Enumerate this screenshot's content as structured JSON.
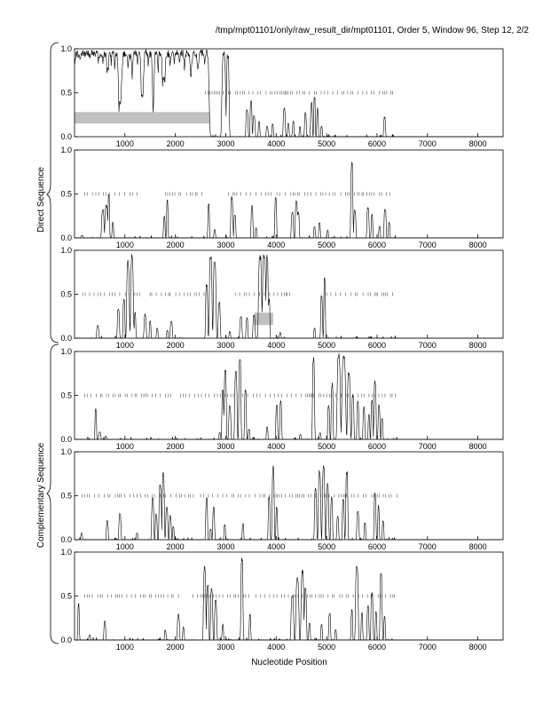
{
  "header_text": "/tmp/mpt01101/only/raw_result_dir/mpt01101, Order 5, Window 96, Step 12, 2/2",
  "xlabel": "Nucleotide Position",
  "group_labels": {
    "direct": "Direct Sequence",
    "complementary": "Complementary Sequence"
  },
  "colors": {
    "line": "#000000",
    "highlight": "#c0c0c0",
    "frame": "#000000"
  },
  "chart_data": {
    "type": "line",
    "xlim": [
      0,
      8500
    ],
    "ylim": [
      0,
      1
    ],
    "x_ticks": [
      1000,
      2000,
      3000,
      4000,
      5000,
      6000,
      7000,
      8000
    ],
    "y_ticks": [
      "0.0",
      "0.5",
      "1.0"
    ],
    "grid": false,
    "legend": "none",
    "frames": [
      {
        "group": "direct",
        "peaks": [
          [
            60,
            980,
            160
          ],
          [
            170,
            990,
            200
          ],
          [
            260,
            985,
            160
          ],
          [
            360,
            1000,
            160
          ],
          [
            430,
            990,
            120
          ],
          [
            520,
            970,
            140
          ],
          [
            600,
            980,
            100
          ],
          [
            660,
            800,
            50
          ],
          [
            700,
            980,
            70
          ],
          [
            760,
            990,
            90
          ],
          [
            830,
            970,
            80
          ],
          [
            900,
            420,
            40
          ],
          [
            1000,
            990,
            140
          ],
          [
            1100,
            960,
            90
          ],
          [
            1200,
            995,
            120
          ],
          [
            1280,
            990,
            80
          ],
          [
            1340,
            500,
            40
          ],
          [
            1420,
            1000,
            110
          ],
          [
            1500,
            980,
            90
          ],
          [
            1560,
            300,
            30
          ],
          [
            1620,
            990,
            90
          ],
          [
            1700,
            995,
            90
          ],
          [
            1770,
            700,
            60
          ],
          [
            1850,
            985,
            120
          ],
          [
            1940,
            990,
            110
          ],
          [
            2030,
            1000,
            130
          ],
          [
            2130,
            995,
            120
          ],
          [
            2240,
            985,
            140
          ],
          [
            2380,
            990,
            150
          ],
          [
            2520,
            995,
            170
          ],
          [
            2620,
            990,
            90
          ],
          [
            2960,
            980,
            70
          ],
          [
            3040,
            960,
            50
          ],
          [
            3420,
            320,
            40
          ],
          [
            3500,
            420,
            35
          ],
          [
            3560,
            250,
            40
          ],
          [
            3660,
            180,
            30
          ],
          [
            3820,
            120,
            35
          ],
          [
            3930,
            150,
            30
          ],
          [
            4160,
            330,
            40
          ],
          [
            4240,
            160,
            30
          ],
          [
            4340,
            180,
            30
          ],
          [
            4470,
            120,
            25
          ],
          [
            4580,
            280,
            35
          ],
          [
            4700,
            400,
            35
          ],
          [
            4760,
            470,
            30
          ],
          [
            4820,
            330,
            30
          ],
          [
            4900,
            120,
            30
          ],
          [
            6150,
            230,
            35
          ]
        ],
        "ticks": [
          [
            2600,
            3700
          ],
          [
            3800,
            4900
          ],
          [
            4960,
            6350
          ]
        ],
        "highlights": [
          [
            0,
            2680,
            0.15,
            0.28
          ]
        ]
      },
      {
        "group": "direct",
        "peaks": [
          [
            150,
            30,
            40
          ],
          [
            560,
            330,
            45
          ],
          [
            630,
            380,
            50
          ],
          [
            680,
            520,
            30
          ],
          [
            760,
            180,
            30
          ],
          [
            1780,
            260,
            30
          ],
          [
            1840,
            450,
            30
          ],
          [
            2660,
            400,
            30
          ],
          [
            2780,
            100,
            30
          ],
          [
            3120,
            480,
            40
          ],
          [
            3180,
            280,
            35
          ],
          [
            3520,
            380,
            35
          ],
          [
            3600,
            120,
            30
          ],
          [
            3990,
            470,
            35
          ],
          [
            4320,
            300,
            40
          ],
          [
            4400,
            440,
            40
          ],
          [
            4440,
            300,
            35
          ],
          [
            4760,
            130,
            30
          ],
          [
            4860,
            180,
            30
          ],
          [
            5020,
            90,
            30
          ],
          [
            5500,
            880,
            40
          ],
          [
            5560,
            330,
            40
          ],
          [
            5820,
            360,
            40
          ],
          [
            5900,
            280,
            30
          ],
          [
            6050,
            140,
            30
          ],
          [
            6160,
            340,
            40
          ],
          [
            6240,
            180,
            30
          ]
        ],
        "ticks": [
          [
            200,
            1300
          ],
          [
            1800,
            2600
          ],
          [
            3050,
            6300
          ]
        ],
        "highlights": []
      },
      {
        "group": "direct",
        "peaks": [
          [
            460,
            150,
            40
          ],
          [
            870,
            350,
            40
          ],
          [
            980,
            450,
            35
          ],
          [
            1060,
            900,
            50
          ],
          [
            1140,
            960,
            50
          ],
          [
            1200,
            300,
            30
          ],
          [
            1400,
            280,
            40
          ],
          [
            1500,
            200,
            30
          ],
          [
            1640,
            120,
            30
          ],
          [
            1840,
            90,
            30
          ],
          [
            1920,
            200,
            40
          ],
          [
            2620,
            640,
            40
          ],
          [
            2700,
            980,
            50
          ],
          [
            2780,
            900,
            50
          ],
          [
            2870,
            420,
            40
          ],
          [
            3080,
            80,
            30
          ],
          [
            3300,
            260,
            40
          ],
          [
            3420,
            240,
            35
          ],
          [
            3560,
            270,
            40
          ],
          [
            3680,
            960,
            60
          ],
          [
            3760,
            980,
            60
          ],
          [
            3820,
            950,
            40
          ],
          [
            3860,
            450,
            30
          ],
          [
            4080,
            70,
            30
          ],
          [
            4760,
            120,
            30
          ],
          [
            4900,
            500,
            35
          ],
          [
            4960,
            700,
            30
          ]
        ],
        "ticks": [
          [
            160,
            1300
          ],
          [
            1500,
            2300
          ],
          [
            2380,
            2600
          ],
          [
            3200,
            4300
          ],
          [
            5000,
            6380
          ]
        ],
        "highlights": [
          [
            3560,
            3940,
            0.15,
            0.29
          ]
        ]
      },
      {
        "group": "complementary",
        "peaks": [
          [
            420,
            350,
            30
          ],
          [
            500,
            90,
            40
          ],
          [
            620,
            40,
            30
          ],
          [
            2880,
            80,
            30
          ],
          [
            2940,
            600,
            35
          ],
          [
            2990,
            820,
            40
          ],
          [
            3080,
            400,
            40
          ],
          [
            3200,
            800,
            45
          ],
          [
            3280,
            970,
            40
          ],
          [
            3390,
            580,
            35
          ],
          [
            3460,
            120,
            30
          ],
          [
            3820,
            150,
            30
          ],
          [
            4010,
            400,
            35
          ],
          [
            4090,
            450,
            35
          ],
          [
            4480,
            60,
            30
          ],
          [
            4740,
            960,
            40
          ],
          [
            4870,
            80,
            30
          ],
          [
            5040,
            400,
            35
          ],
          [
            5110,
            650,
            35
          ],
          [
            5240,
            980,
            60
          ],
          [
            5340,
            970,
            70
          ],
          [
            5440,
            800,
            50
          ],
          [
            5520,
            520,
            40
          ],
          [
            5620,
            450,
            35
          ],
          [
            5740,
            380,
            35
          ],
          [
            5840,
            300,
            30
          ],
          [
            5900,
            450,
            35
          ],
          [
            5960,
            680,
            40
          ],
          [
            6040,
            400,
            35
          ],
          [
            6100,
            250,
            30
          ]
        ],
        "ticks": [
          [
            200,
            2000
          ],
          [
            2100,
            3100
          ],
          [
            3150,
            6400
          ]
        ],
        "highlights": []
      },
      {
        "group": "complementary",
        "peaks": [
          [
            140,
            80,
            30
          ],
          [
            650,
            220,
            35
          ],
          [
            900,
            300,
            40
          ],
          [
            1240,
            80,
            30
          ],
          [
            1550,
            480,
            40
          ],
          [
            1620,
            300,
            35
          ],
          [
            1700,
            640,
            45
          ],
          [
            1760,
            800,
            40
          ],
          [
            1830,
            380,
            40
          ],
          [
            1900,
            280,
            35
          ],
          [
            1960,
            150,
            30
          ],
          [
            2620,
            490,
            35
          ],
          [
            2700,
            120,
            30
          ],
          [
            2760,
            380,
            35
          ],
          [
            2980,
            180,
            30
          ],
          [
            3340,
            190,
            30
          ],
          [
            3860,
            500,
            35
          ],
          [
            3940,
            850,
            40
          ],
          [
            4010,
            380,
            30
          ],
          [
            4780,
            600,
            40
          ],
          [
            4860,
            800,
            45
          ],
          [
            4940,
            850,
            45
          ],
          [
            5020,
            650,
            40
          ],
          [
            5100,
            500,
            35
          ],
          [
            5220,
            280,
            35
          ],
          [
            5330,
            480,
            35
          ],
          [
            5400,
            800,
            40
          ],
          [
            5620,
            330,
            40
          ],
          [
            5760,
            200,
            30
          ],
          [
            5960,
            540,
            35
          ],
          [
            6030,
            400,
            30
          ],
          [
            6120,
            220,
            30
          ]
        ],
        "ticks": [
          [
            150,
            1000
          ],
          [
            1100,
            2400
          ],
          [
            2500,
            6400
          ]
        ],
        "highlights": []
      },
      {
        "group": "complementary",
        "peaks": [
          [
            80,
            420,
            30
          ],
          [
            300,
            60,
            30
          ],
          [
            600,
            220,
            35
          ],
          [
            1800,
            120,
            30
          ],
          [
            2060,
            300,
            40
          ],
          [
            2160,
            150,
            30
          ],
          [
            2580,
            850,
            45
          ],
          [
            2640,
            650,
            40
          ],
          [
            2720,
            600,
            40
          ],
          [
            2800,
            480,
            40
          ],
          [
            2940,
            180,
            30
          ],
          [
            3320,
            950,
            40
          ],
          [
            3480,
            300,
            30
          ],
          [
            4320,
            520,
            50
          ],
          [
            4420,
            720,
            55
          ],
          [
            4520,
            800,
            50
          ],
          [
            4580,
            600,
            40
          ],
          [
            4660,
            200,
            30
          ],
          [
            4900,
            180,
            30
          ],
          [
            5060,
            320,
            35
          ],
          [
            5180,
            120,
            30
          ],
          [
            5500,
            360,
            30
          ],
          [
            5600,
            880,
            50
          ],
          [
            5700,
            320,
            30
          ],
          [
            5820,
            400,
            35
          ],
          [
            5900,
            560,
            40
          ],
          [
            5980,
            330,
            30
          ],
          [
            6080,
            800,
            40
          ],
          [
            6150,
            280,
            30
          ]
        ],
        "ticks": [
          [
            200,
            2100
          ],
          [
            2350,
            3500
          ],
          [
            3600,
            6400
          ]
        ],
        "highlights": []
      }
    ]
  }
}
